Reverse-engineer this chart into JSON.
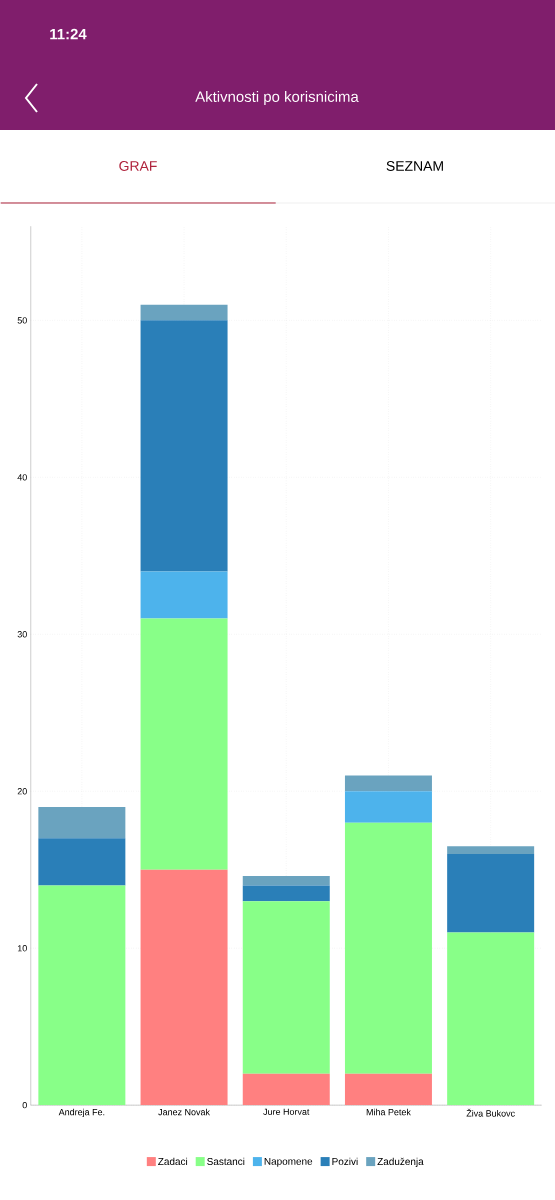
{
  "chart_data": {
    "type": "bar",
    "title": "Aktivnosti po korisnicima",
    "annotations": [
      "11:24",
      "GRAF",
      "SEZNAM"
    ],
    "categories": [
      "Andreja Fe.",
      "Janez Novak",
      "Jure Horvat",
      "Miha Petek",
      "Živa Bukovc"
    ],
    "stacked": true,
    "series": [
      {
        "name": "Zadaci",
        "color": "#ff8080",
        "values": [
          0,
          15,
          2,
          2,
          0
        ]
      },
      {
        "name": "Sastanci",
        "color": "#88ff88",
        "values": [
          14,
          16,
          11,
          16,
          11
        ]
      },
      {
        "name": "Napomene",
        "color": "#4db3ec",
        "values": [
          0,
          3,
          0,
          2,
          0
        ]
      },
      {
        "name": "Pozivi",
        "color": "#2a7fb8",
        "values": [
          3,
          16,
          1,
          0,
          5
        ]
      },
      {
        "name": "Zaduženja",
        "color": "#6aa3bf",
        "values": [
          2,
          1,
          0.6,
          1,
          0.5
        ]
      }
    ],
    "ylim": [
      0,
      56
    ],
    "yticks": [
      0,
      10,
      20,
      30,
      40,
      50
    ],
    "grid": true,
    "legend": "bottom"
  }
}
